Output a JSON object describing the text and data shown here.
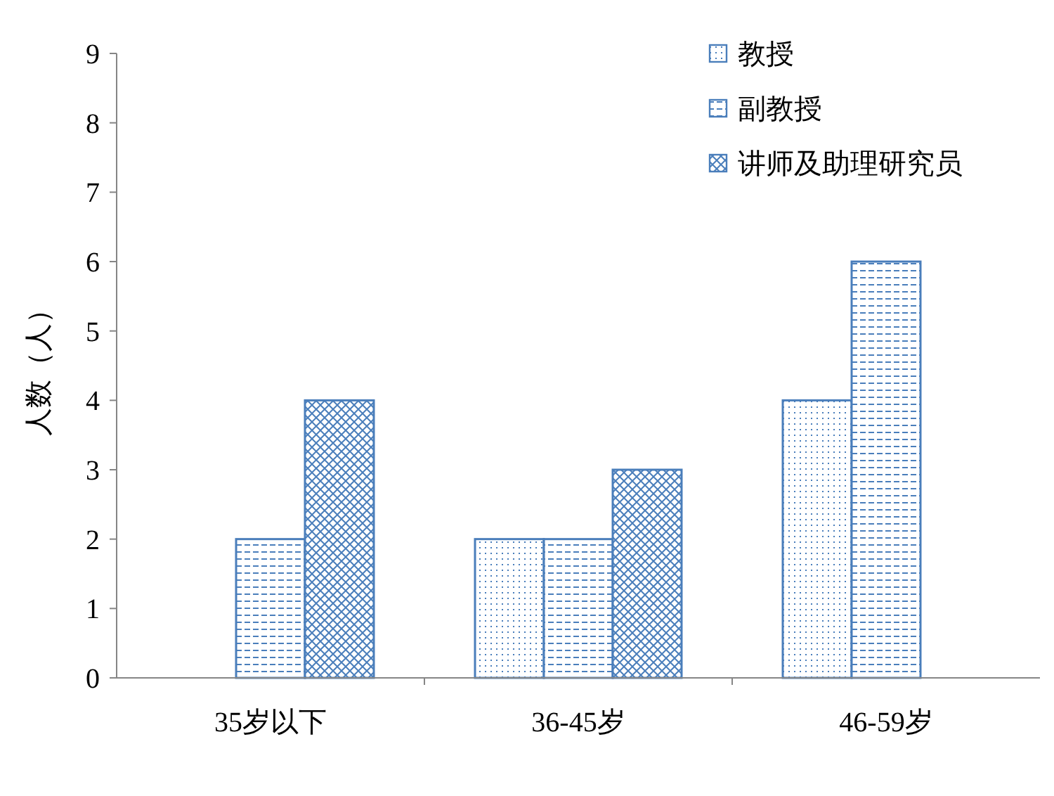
{
  "chart_data": {
    "type": "bar",
    "ylabel": "人数（人）",
    "categories": [
      "35岁以下",
      "36-45岁",
      "46-59岁"
    ],
    "series": [
      {
        "name": "教授",
        "color": "#4a7ebb",
        "values": [
          0,
          2,
          4
        ]
      },
      {
        "name": "副教授",
        "color": "#4a7ebb",
        "values": [
          2,
          2,
          6
        ]
      },
      {
        "name": "讲师及助理研究员",
        "color": "#4a7ebb",
        "values": [
          4,
          3,
          0
        ]
      }
    ],
    "ylim": [
      0,
      9
    ],
    "yticks": [
      0,
      1,
      2,
      3,
      4,
      5,
      6,
      7,
      8,
      9
    ],
    "grid": false,
    "legend": "top right"
  }
}
